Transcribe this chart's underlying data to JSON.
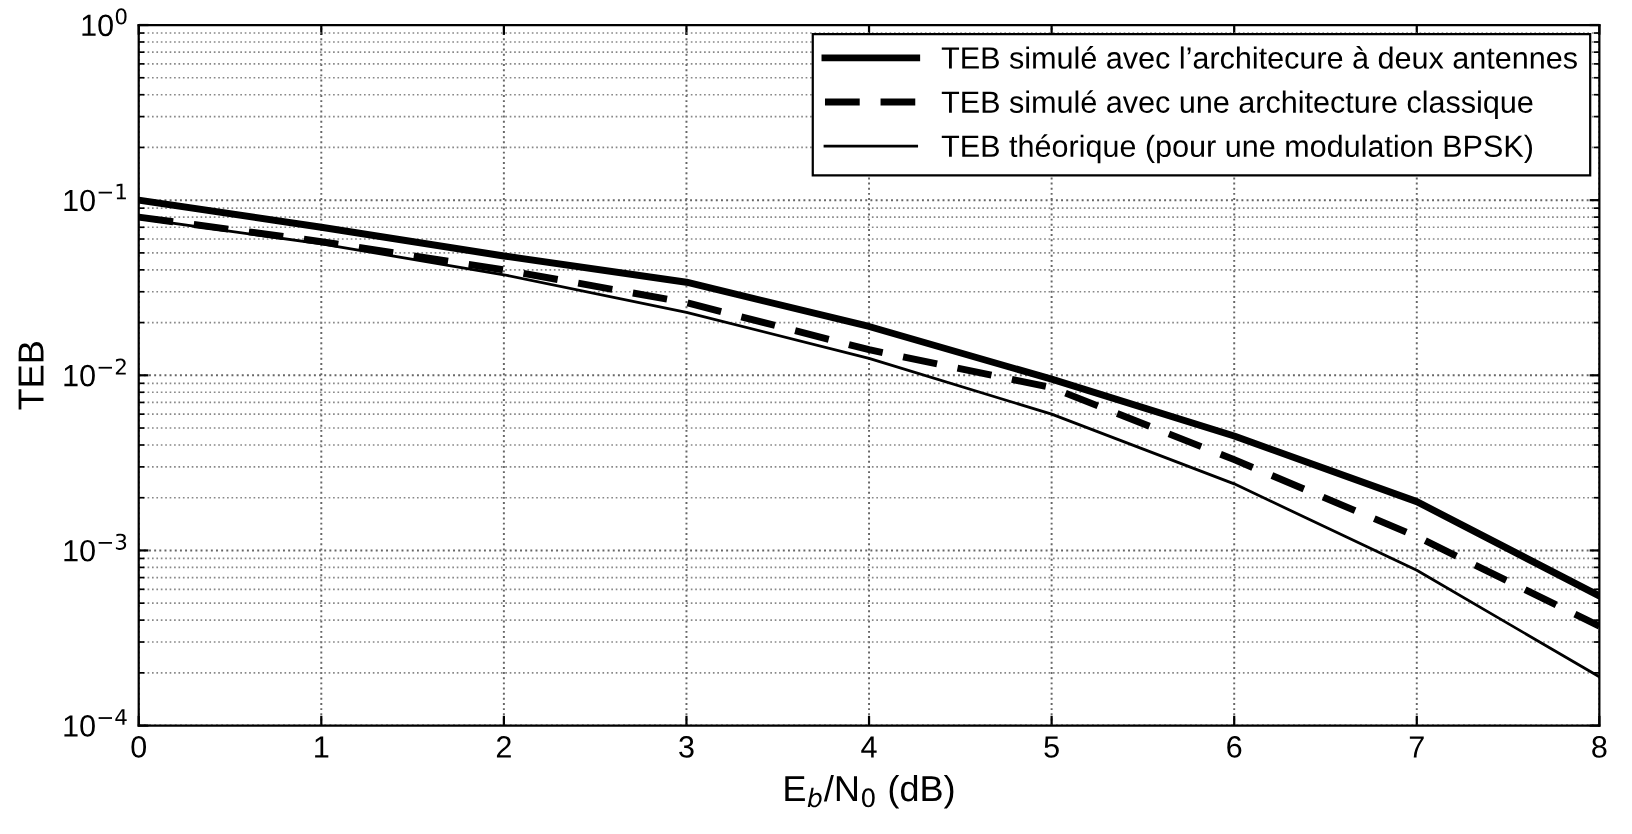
{
  "chart_data": {
    "type": "line",
    "xlabel": "E$_{b}$/N$_{0}$ (dB)",
    "ylabel": "TEB",
    "log": "y",
    "grid": true,
    "legend": "top right",
    "x": [
      0,
      1,
      2,
      3,
      4,
      5,
      6,
      7,
      8
    ],
    "xlim": [
      0,
      8
    ],
    "xticks": [
      0,
      1,
      2,
      3,
      4,
      5,
      6,
      7,
      8
    ],
    "ylim": [
      0.0001,
      1
    ],
    "yticks": [
      {
        "value": 0.0001,
        "label": "10$^{−4}$"
      },
      {
        "value": 0.001,
        "label": "10$^{−3}$"
      },
      {
        "value": 0.01,
        "label": "10$^{−2}$"
      },
      {
        "value": 0.1,
        "label": "10$^{−1}$"
      },
      {
        "value": 1,
        "label": "10$^{0}$"
      }
    ],
    "series": [
      {
        "name": "TEB simulé avec l’architecure à deux antennes",
        "color": "#000000",
        "line_style": "solid",
        "values": [
          0.1,
          0.07,
          0.048,
          0.034,
          0.019,
          0.0095,
          0.0045,
          0.0019,
          0.00055
        ]
      },
      {
        "name": "TEB simulé avec une architecture classique",
        "color": "#000000",
        "line_style": "dashed",
        "values": [
          0.08,
          0.058,
          0.04,
          0.026,
          0.014,
          0.0085,
          0.0033,
          0.0012,
          0.00037
        ]
      },
      {
        "name": "TEB théorique (pour une modulation BPSK)",
        "color": "#000000",
        "line_style": "solid",
        "values": [
          0.0786,
          0.0563,
          0.0375,
          0.0229,
          0.0125,
          0.006,
          0.0024,
          0.00077,
          0.00019
        ]
      }
    ]
  }
}
